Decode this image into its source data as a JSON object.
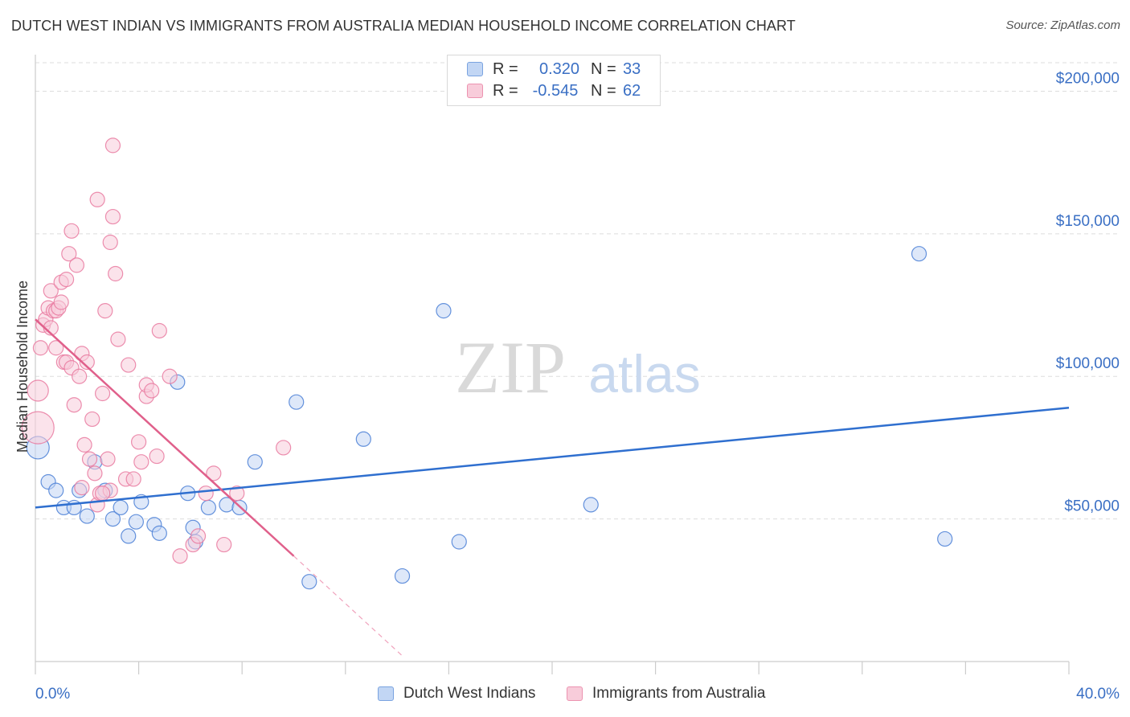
{
  "title": "DUTCH WEST INDIAN VS IMMIGRANTS FROM AUSTRALIA MEDIAN HOUSEHOLD INCOME CORRELATION CHART",
  "source": "Source: ZipAtlas.com",
  "watermark": {
    "zip": "ZIP",
    "atlas": "atlas"
  },
  "legend": {
    "rows": [
      {
        "r_label": "R =",
        "r_value": "0.320",
        "n_label": "N =",
        "n_value": "33"
      },
      {
        "r_label": "R =",
        "r_value": "-0.545",
        "n_label": "N =",
        "n_value": "62"
      }
    ]
  },
  "colors": {
    "blue": "#4a7fd6",
    "blue_fill": "#c2d6f4",
    "blue_line": "#2f6fcf",
    "pink": "#e97aa0",
    "pink_fill": "#f8ccda",
    "pink_line": "#e0608b",
    "axis_label": "#3a6fc4",
    "grid": "#dddddd"
  },
  "chart_data": {
    "type": "scatter",
    "title": "DUTCH WEST INDIAN VS IMMIGRANTS FROM AUSTRALIA MEDIAN HOUSEHOLD INCOME CORRELATION CHART",
    "xlabel": "",
    "ylabel": "Median Household Income",
    "xlim": [
      0,
      40
    ],
    "ylim": [
      0,
      210000
    ],
    "x_tick_labels": [
      "0.0%",
      "40.0%"
    ],
    "y_ticks": [
      50000,
      100000,
      150000,
      200000
    ],
    "y_tick_labels": [
      "$50,000",
      "$100,000",
      "$150,000",
      "$200,000"
    ],
    "grid": true,
    "series": [
      {
        "name": "Dutch West Indians",
        "color": "blue",
        "r": "0.320",
        "n": "33",
        "trend": {
          "x0": 0,
          "y0": 54000,
          "x1": 40,
          "y1": 89000
        },
        "points": [
          [
            0.1,
            75000,
            14
          ],
          [
            0.5,
            63000,
            9
          ],
          [
            0.8,
            60000,
            9
          ],
          [
            1.1,
            54000,
            9
          ],
          [
            1.5,
            54000,
            9
          ],
          [
            1.7,
            60000,
            9
          ],
          [
            2.0,
            51000,
            9
          ],
          [
            2.3,
            70000,
            9
          ],
          [
            2.7,
            60000,
            9
          ],
          [
            3.0,
            50000,
            9
          ],
          [
            3.3,
            54000,
            9
          ],
          [
            3.6,
            44000,
            9
          ],
          [
            3.9,
            49000,
            9
          ],
          [
            4.1,
            56000,
            9
          ],
          [
            4.6,
            48000,
            9
          ],
          [
            4.8,
            45000,
            9
          ],
          [
            5.5,
            98000,
            9
          ],
          [
            5.9,
            59000,
            9
          ],
          [
            6.1,
            47000,
            9
          ],
          [
            6.2,
            42000,
            9
          ],
          [
            6.7,
            54000,
            9
          ],
          [
            7.4,
            55000,
            9
          ],
          [
            7.9,
            54000,
            9
          ],
          [
            8.5,
            70000,
            9
          ],
          [
            10.1,
            91000,
            9
          ],
          [
            10.6,
            28000,
            9
          ],
          [
            12.7,
            78000,
            9
          ],
          [
            14.2,
            30000,
            9
          ],
          [
            15.8,
            123000,
            9
          ],
          [
            16.4,
            42000,
            9
          ],
          [
            21.5,
            55000,
            9
          ],
          [
            34.2,
            143000,
            9
          ],
          [
            35.2,
            43000,
            9
          ]
        ]
      },
      {
        "name": "Immigrants from Australia",
        "color": "pink",
        "r": "-0.545",
        "n": "62",
        "trend": {
          "x0": 0,
          "y0": 120000,
          "x1": 10.0,
          "y1": 37000
        },
        "trend_dashed": {
          "x0": 10.0,
          "y0": 37000,
          "x1": 14.2,
          "y1": 2000
        },
        "points": [
          [
            0.1,
            82000,
            20
          ],
          [
            0.1,
            95000,
            13
          ],
          [
            0.2,
            110000,
            9
          ],
          [
            0.3,
            118000,
            9
          ],
          [
            0.4,
            120000,
            9
          ],
          [
            0.5,
            124000,
            9
          ],
          [
            0.6,
            117000,
            9
          ],
          [
            0.6,
            130000,
            9
          ],
          [
            0.7,
            123000,
            9
          ],
          [
            0.8,
            110000,
            9
          ],
          [
            0.8,
            123000,
            9
          ],
          [
            0.9,
            124000,
            9
          ],
          [
            1.0,
            126000,
            9
          ],
          [
            1.0,
            133000,
            9
          ],
          [
            1.1,
            105000,
            9
          ],
          [
            1.2,
            105000,
            9
          ],
          [
            1.2,
            134000,
            9
          ],
          [
            1.3,
            143000,
            9
          ],
          [
            1.4,
            151000,
            9
          ],
          [
            1.4,
            103000,
            9
          ],
          [
            1.5,
            90000,
            9
          ],
          [
            1.6,
            139000,
            9
          ],
          [
            1.7,
            100000,
            9
          ],
          [
            1.8,
            108000,
            9
          ],
          [
            1.8,
            61000,
            9
          ],
          [
            1.9,
            76000,
            9
          ],
          [
            2.0,
            105000,
            9
          ],
          [
            2.1,
            71000,
            9
          ],
          [
            2.2,
            85000,
            9
          ],
          [
            2.3,
            66000,
            9
          ],
          [
            2.4,
            55000,
            9
          ],
          [
            2.4,
            162000,
            9
          ],
          [
            2.5,
            59000,
            9
          ],
          [
            2.6,
            94000,
            9
          ],
          [
            2.7,
            123000,
            9
          ],
          [
            2.8,
            71000,
            9
          ],
          [
            2.9,
            60000,
            9
          ],
          [
            2.9,
            147000,
            9
          ],
          [
            3.0,
            156000,
            9
          ],
          [
            3.0,
            181000,
            9
          ],
          [
            3.1,
            136000,
            9
          ],
          [
            3.2,
            113000,
            9
          ],
          [
            3.5,
            64000,
            9
          ],
          [
            3.6,
            104000,
            9
          ],
          [
            3.8,
            64000,
            9
          ],
          [
            4.0,
            77000,
            9
          ],
          [
            4.1,
            70000,
            9
          ],
          [
            4.3,
            93000,
            9
          ],
          [
            4.3,
            97000,
            9
          ],
          [
            4.5,
            95000,
            9
          ],
          [
            4.7,
            72000,
            9
          ],
          [
            4.8,
            116000,
            9
          ],
          [
            5.2,
            100000,
            9
          ],
          [
            5.6,
            37000,
            9
          ],
          [
            6.1,
            41000,
            9
          ],
          [
            6.3,
            44000,
            9
          ],
          [
            6.6,
            59000,
            9
          ],
          [
            6.9,
            66000,
            9
          ],
          [
            7.3,
            41000,
            9
          ],
          [
            7.8,
            59000,
            9
          ],
          [
            9.6,
            75000,
            9
          ],
          [
            2.6,
            59000,
            9
          ]
        ]
      }
    ]
  }
}
